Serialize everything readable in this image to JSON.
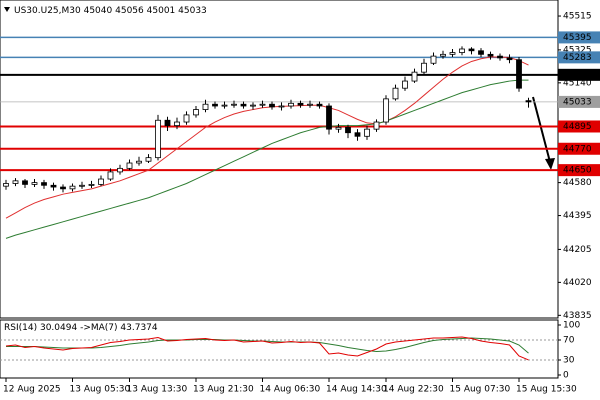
{
  "chart_data": {
    "type": "candlestick",
    "symbol": "US30.U25,M30",
    "categories": [
      "12 Aug 2025",
      null,
      null,
      null,
      null,
      null,
      null,
      "13 Aug 05:30",
      null,
      null,
      null,
      null,
      null,
      "13 Aug 13:30",
      null,
      null,
      null,
      null,
      null,
      null,
      "13 Aug 21:30",
      null,
      null,
      null,
      null,
      null,
      null,
      "14 Aug 06:30",
      null,
      null,
      null,
      null,
      null,
      null,
      "14 Aug 14:30",
      null,
      null,
      null,
      null,
      null,
      "14 Aug 22:30",
      null,
      null,
      null,
      null,
      null,
      null,
      "15 Aug 07:30",
      null,
      null,
      null,
      null,
      null,
      null,
      "15 Aug 15:30",
      null
    ],
    "open": [
      44560,
      44575,
      44590,
      44570,
      44580,
      44565,
      44555,
      44545,
      44560,
      44565,
      44570,
      44600,
      44640,
      44660,
      44690,
      44700,
      44720,
      44930,
      44900,
      44920,
      44960,
      44990,
      45020,
      45010,
      45015,
      45020,
      45010,
      45015,
      45020,
      45005,
      45010,
      45025,
      45015,
      45020,
      45010,
      44880,
      44890,
      44860,
      44840,
      44880,
      44920,
      45050,
      45110,
      45150,
      45200,
      45250,
      45290,
      45300,
      45310,
      45330,
      45320,
      45300,
      45290,
      45280,
      45270,
      45040
    ],
    "high": [
      44595,
      44605,
      44600,
      44600,
      44595,
      44580,
      44570,
      44575,
      44585,
      44590,
      44620,
      44660,
      44680,
      44710,
      44725,
      44740,
      44960,
      44950,
      44945,
      44980,
      45010,
      45045,
      45035,
      45035,
      45040,
      45035,
      45030,
      45040,
      45035,
      45030,
      45045,
      45040,
      45040,
      45035,
      45025,
      44910,
      44905,
      44880,
      44900,
      44935,
      45070,
      45130,
      45175,
      45220,
      45275,
      45310,
      45320,
      45330,
      45345,
      45340,
      45335,
      45315,
      45305,
      45300,
      45285,
      45056
    ],
    "low": [
      44540,
      44560,
      44550,
      44555,
      44545,
      44535,
      44525,
      44530,
      44545,
      44550,
      44560,
      44590,
      44625,
      44650,
      44675,
      44690,
      44705,
      44870,
      44880,
      44905,
      44945,
      44975,
      44995,
      44995,
      45000,
      44995,
      44990,
      45000,
      44990,
      44985,
      44995,
      45000,
      45000,
      44995,
      44850,
      44860,
      44830,
      44815,
      44820,
      44865,
      44905,
      45040,
      45095,
      45140,
      45185,
      45240,
      45275,
      45285,
      45295,
      45300,
      45285,
      45270,
      45265,
      45250,
      45090,
      45001
    ],
    "close": [
      44575,
      44590,
      44570,
      44580,
      44565,
      44555,
      44545,
      44560,
      44565,
      44570,
      44600,
      44640,
      44660,
      44690,
      44700,
      44720,
      44930,
      44900,
      44920,
      44960,
      44990,
      45020,
      45010,
      45015,
      45020,
      45010,
      45015,
      45020,
      45005,
      45010,
      45025,
      45015,
      45020,
      45010,
      44880,
      44890,
      44860,
      44840,
      44880,
      44920,
      45050,
      45110,
      45150,
      45200,
      45250,
      45290,
      45300,
      45310,
      45330,
      45320,
      45300,
      45290,
      45280,
      45270,
      45110,
      45033
    ],
    "series": [
      {
        "color": "#e03030",
        "values": [
          44380,
          44410,
          44440,
          44465,
          44485,
          44500,
          44515,
          44525,
          44535,
          44545,
          44560,
          44575,
          44590,
          44610,
          44630,
          44650,
          44690,
          44730,
          44770,
          44810,
          44850,
          44890,
          44920,
          44945,
          44965,
          44980,
          44990,
          45000,
          45005,
          45008,
          45010,
          45012,
          45014,
          45014,
          45000,
          44985,
          44960,
          44935,
          44915,
          44910,
          44925,
          44950,
          44985,
          45025,
          45070,
          45115,
          45160,
          45200,
          45235,
          45260,
          45275,
          45285,
          45285,
          45282,
          45265,
          45240
        ]
      },
      {
        "color": "#2e7d32",
        "values": [
          44267,
          44285,
          44300,
          44315,
          44330,
          44345,
          44360,
          44375,
          44390,
          44405,
          44420,
          44435,
          44450,
          44465,
          44480,
          44495,
          44515,
          44535,
          44555,
          44575,
          44600,
          44625,
          44650,
          44675,
          44700,
          44725,
          44750,
          44775,
          44800,
          44820,
          44840,
          44860,
          44875,
          44890,
          44895,
          44900,
          44900,
          44900,
          44905,
          44910,
          44925,
          44945,
          44965,
          44985,
          45005,
          45025,
          45045,
          45065,
          45085,
          45100,
          45115,
          45130,
          45140,
          45150,
          45155,
          45155
        ]
      }
    ],
    "ylim": [
      43820,
      45605
    ],
    "yticks": [
      45515,
      45325,
      45140,
      44580,
      44395,
      44205,
      44020,
      43835
    ],
    "levels": [
      {
        "value": 45395,
        "color": "#4682b4"
      },
      {
        "value": 45283,
        "color": "#4682b4"
      },
      {
        "value": 45185,
        "color": "#000000"
      },
      {
        "value": 44895,
        "color": "#e00000"
      },
      {
        "value": 44770,
        "color": "#e00000"
      },
      {
        "value": 44650,
        "color": "#e00000"
      }
    ],
    "rsi": {
      "label": "RSI(14)",
      "ma_label": "->MA(7)",
      "color": "#e00000",
      "ma_color": "#2e7d32",
      "values": [
        58,
        60,
        55,
        57,
        54,
        52,
        50,
        53,
        54,
        55,
        60,
        65,
        67,
        70,
        71,
        72,
        75,
        68,
        69,
        71,
        72,
        73,
        70,
        69,
        70,
        66,
        67,
        68,
        64,
        65,
        67,
        65,
        66,
        64,
        42,
        44,
        40,
        38,
        45,
        52,
        62,
        66,
        68,
        70,
        72,
        74,
        74,
        75,
        76,
        73,
        68,
        65,
        63,
        60,
        38,
        30.0494
      ],
      "ma": [
        57,
        57,
        57,
        57,
        56,
        55,
        54,
        54,
        54,
        54,
        55,
        57,
        59,
        62,
        64,
        66,
        69,
        70,
        70,
        70,
        71,
        71,
        71,
        70,
        70,
        69,
        68,
        68,
        67,
        66,
        66,
        66,
        66,
        65,
        62,
        59,
        55,
        52,
        49,
        47,
        48,
        51,
        55,
        60,
        65,
        69,
        71,
        72,
        73,
        74,
        73,
        72,
        70,
        68,
        60,
        43.7374
      ],
      "ylim": [
        0,
        100
      ],
      "yticks": [
        100,
        70,
        30,
        0
      ],
      "levels": [
        70,
        30
      ]
    }
  }
}
